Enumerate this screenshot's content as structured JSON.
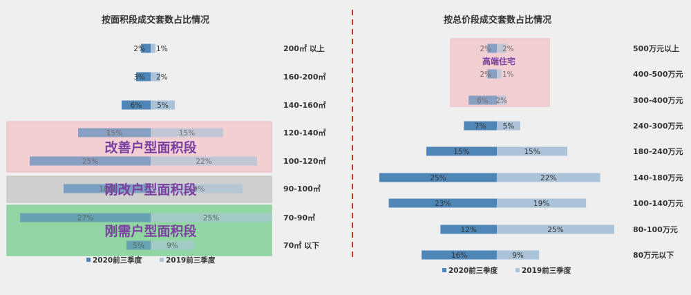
{
  "colors": {
    "series_2020": "#4f86b8",
    "series_2019": "#aac3d8",
    "divider": "#c0392b",
    "callout_text": "#7b3fa0",
    "band_pink": "#f2cfd3",
    "band_gray": "#cfcfcf",
    "band_green": "#93d6a4",
    "background": "#efefef"
  },
  "chart_data": [
    {
      "type": "bar",
      "orientation": "horizontal-diverging",
      "title": "按面积段成交套数占比情况",
      "categories": [
        "200㎡以上",
        "160-200㎡",
        "140-160㎡",
        "120-140㎡",
        "100-120㎡",
        "90-100㎡",
        "70-90㎡",
        "70㎡以下"
      ],
      "category_labels": [
        "200㎡ 以上",
        "160-200㎡",
        "140-160㎡",
        "120-140㎡",
        "100-120㎡",
        "90-100㎡",
        "70-90㎡",
        "70㎡ 以下"
      ],
      "series": [
        {
          "name": "2020前三季度",
          "values": [
            2,
            3,
            6,
            15,
            25,
            18,
            27,
            5
          ],
          "labels": [
            "2%",
            "3%",
            "6%",
            "15%",
            "25%",
            "18%",
            "27%",
            "5%"
          ]
        },
        {
          "name": "2019前三季度",
          "values": [
            1,
            2,
            5,
            15,
            22,
            19,
            25,
            9
          ],
          "labels": [
            "1%",
            "2%",
            "5%",
            "15%",
            "22%",
            "19%",
            "25%",
            "9%"
          ]
        }
      ],
      "annotations": [
        {
          "text": "改善户型面积段",
          "band": "pink",
          "covers": [
            "120-140㎡",
            "100-120㎡"
          ]
        },
        {
          "text": "刚改户型面积段",
          "band": "gray",
          "covers": [
            "90-100㎡"
          ]
        },
        {
          "text": "刚需户型面积段",
          "band": "green",
          "covers": [
            "70-90㎡",
            "70㎡以下"
          ]
        }
      ],
      "legend": [
        "2020前三季度",
        "2019前三季度"
      ],
      "legend_position": "bottom"
    },
    {
      "type": "bar",
      "orientation": "horizontal-diverging",
      "title": "按总价段成交套数占比情况",
      "categories": [
        "500万元以上",
        "400-500万元",
        "300-400万元",
        "240-300万元",
        "180-240万元",
        "140-180万元",
        "100-140万元",
        "80-100万元",
        "80万元以下"
      ],
      "category_labels": [
        "500万元以上",
        "400-500万元",
        "300-400万元",
        "240-300万元",
        "180-240万元",
        "140-180万元",
        "100-140万元",
        "80-100万元",
        "80万元以下"
      ],
      "series": [
        {
          "name": "2020前三季度",
          "values": [
            2,
            2,
            6,
            7,
            15,
            25,
            23,
            12,
            16
          ],
          "labels": [
            "2%",
            "2%",
            "6%",
            "7%",
            "15%",
            "25%",
            "23%",
            "12%",
            "16%"
          ]
        },
        {
          "name": "2019前三季度",
          "values": [
            2,
            1,
            2,
            5,
            15,
            22,
            19,
            25,
            9
          ],
          "labels": [
            "2%",
            "1%",
            "2%",
            "5%",
            "15%",
            "22%",
            "19%",
            "25%",
            "9%"
          ]
        }
      ],
      "annotations": [
        {
          "text": "高端住宅",
          "band": "pink",
          "covers": [
            "500万元以上",
            "400-500万元",
            "300-400万元"
          ]
        }
      ],
      "legend": [
        "2020前三季度",
        "2019前三季度"
      ],
      "legend_position": "bottom"
    }
  ]
}
